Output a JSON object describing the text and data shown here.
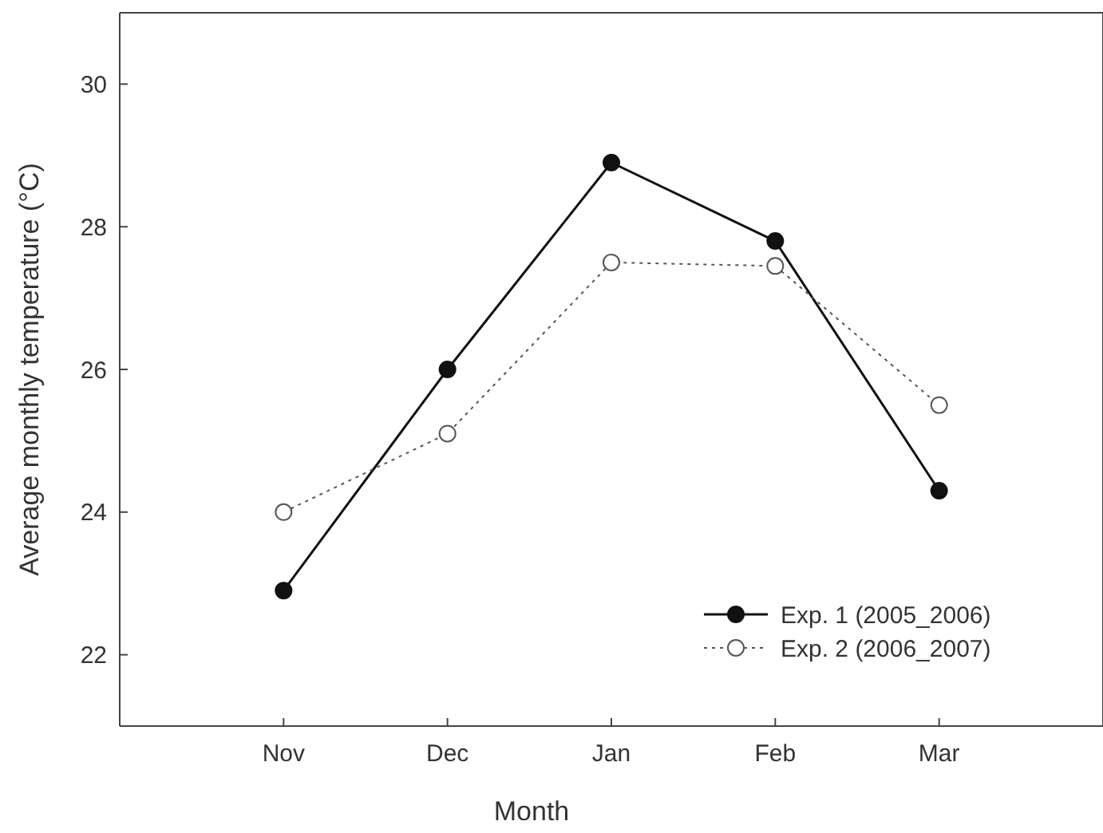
{
  "chart_data": {
    "type": "line",
    "xlabel": "Month",
    "ylabel": "Average monthly temperature (°C)",
    "categories": [
      "Nov",
      "Dec",
      "Jan",
      "Feb",
      "Mar"
    ],
    "ylim": [
      21,
      31
    ],
    "yticks": [
      22,
      24,
      26,
      28,
      30
    ],
    "grid": false,
    "legend": "bottom right",
    "series": [
      {
        "name": "Exp. 1 (2005_2006)",
        "color": "#111111",
        "values": [
          22.9,
          26.0,
          28.9,
          27.8,
          24.3
        ],
        "marker": "circle",
        "line_style": "solid"
      },
      {
        "name": "Exp. 2 (2006_2007)",
        "color": "#555555",
        "values": [
          24.0,
          25.1,
          27.5,
          27.45,
          25.5
        ],
        "marker": "open-circle",
        "line_style": "dotted"
      }
    ]
  }
}
